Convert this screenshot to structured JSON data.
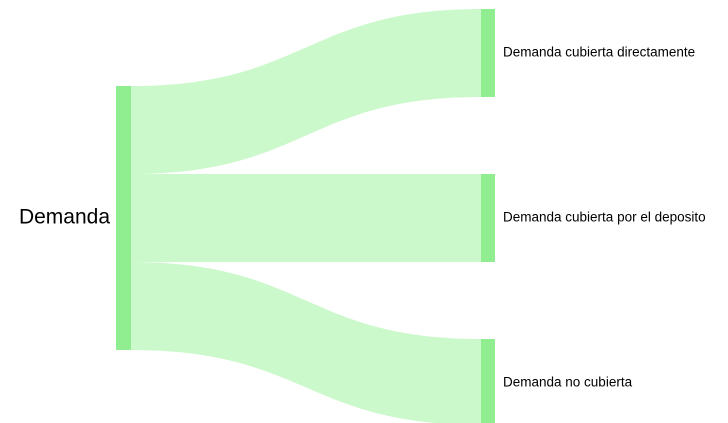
{
  "diagram": {
    "type": "sankey",
    "colors": {
      "node": "#90ee90",
      "link": "#ccf9cc"
    },
    "source": {
      "label": "Demanda"
    },
    "targets": [
      {
        "label": "Demanda cubierta directamente"
      },
      {
        "label": "Demanda cubierta por el deposito"
      },
      {
        "label": "Demanda no cubierta"
      }
    ],
    "links": [
      {
        "from": "Demanda",
        "to": "Demanda cubierta directamente",
        "share": 1
      },
      {
        "from": "Demanda",
        "to": "Demanda cubierta por el deposito",
        "share": 1
      },
      {
        "from": "Demanda",
        "to": "Demanda no cubierta",
        "share": 1
      }
    ]
  }
}
